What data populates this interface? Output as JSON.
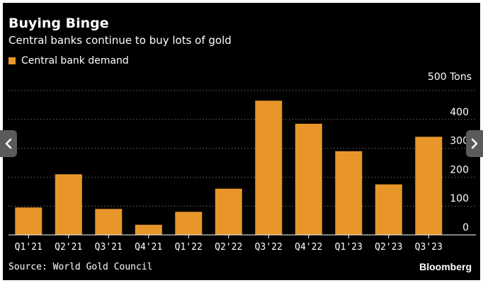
{
  "header": {
    "title": "Buying Binge",
    "subtitle": "Central banks continue to buy lots of gold"
  },
  "legend": {
    "label": "Central bank demand"
  },
  "footer": {
    "source": "Source: World Gold Council",
    "brand": "Bloomberg"
  },
  "nav": {
    "prev_icon": "chevron-left-icon",
    "next_icon": "chevron-right-icon"
  },
  "colors": {
    "bar": "#e8962a",
    "background": "#000000",
    "text": "#ffffff",
    "grid": "#6a6a6a"
  },
  "chart_data": {
    "type": "bar",
    "title": "Buying Binge",
    "subtitle": "Central banks continue to buy lots of gold",
    "categories": [
      "Q1'21",
      "Q2'21",
      "Q3'21",
      "Q4'21",
      "Q1'22",
      "Q2'22",
      "Q3'22",
      "Q4'22",
      "Q1'23",
      "Q2'23",
      "Q3'23"
    ],
    "series": [
      {
        "name": "Central bank demand",
        "values": [
          95,
          210,
          90,
          35,
          80,
          160,
          465,
          385,
          290,
          175,
          340
        ]
      }
    ],
    "unit": "Tons",
    "yticks": [
      0,
      100,
      200,
      300,
      400,
      500
    ],
    "ytick_labels": [
      "0",
      "100",
      "200",
      "300",
      "400",
      "500 Tons"
    ],
    "ylim": [
      0,
      500
    ],
    "grid": true,
    "gridline_style": "dotted",
    "y_axis_side": "right",
    "legend_position": "top-left"
  }
}
